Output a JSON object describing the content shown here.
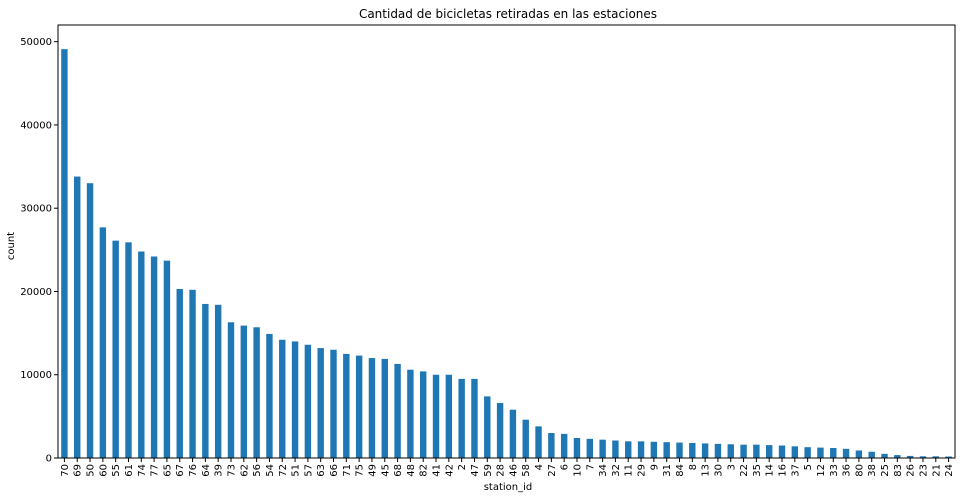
{
  "chart_data": {
    "type": "bar",
    "title": "Cantidad de bicicletas retiradas en las estaciones",
    "xlabel": "station_id",
    "ylabel": "count",
    "ylim": [
      0,
      52000
    ],
    "yticks": [
      0,
      10000,
      20000,
      30000,
      40000,
      50000
    ],
    "grid": false,
    "bar_color": "#1f77b4",
    "categories": [
      "70",
      "69",
      "50",
      "60",
      "55",
      "61",
      "74",
      "77",
      "65",
      "67",
      "76",
      "64",
      "39",
      "73",
      "62",
      "56",
      "54",
      "72",
      "51",
      "57",
      "63",
      "66",
      "71",
      "75",
      "49",
      "45",
      "68",
      "48",
      "82",
      "41",
      "42",
      "2",
      "47",
      "59",
      "28",
      "46",
      "58",
      "4",
      "27",
      "6",
      "10",
      "7",
      "34",
      "32",
      "11",
      "29",
      "9",
      "31",
      "84",
      "8",
      "13",
      "30",
      "3",
      "22",
      "35",
      "14",
      "16",
      "37",
      "5",
      "12",
      "33",
      "36",
      "80",
      "38",
      "25",
      "83",
      "26",
      "23",
      "21",
      "24"
    ],
    "values": [
      49100,
      33800,
      33000,
      27700,
      26100,
      25900,
      24800,
      24200,
      23700,
      20300,
      20200,
      18500,
      18400,
      16300,
      15900,
      15700,
      14900,
      14200,
      14000,
      13600,
      13200,
      13000,
      12500,
      12300,
      12000,
      11900,
      11300,
      10600,
      10400,
      10000,
      10000,
      9500,
      9500,
      7400,
      6600,
      5800,
      4600,
      3800,
      3000,
      2900,
      2400,
      2300,
      2200,
      2100,
      2000,
      2000,
      1950,
      1900,
      1850,
      1800,
      1750,
      1700,
      1650,
      1600,
      1600,
      1550,
      1500,
      1400,
      1300,
      1250,
      1200,
      1100,
      900,
      750,
      500,
      350,
      250,
      200,
      200,
      180
    ]
  }
}
